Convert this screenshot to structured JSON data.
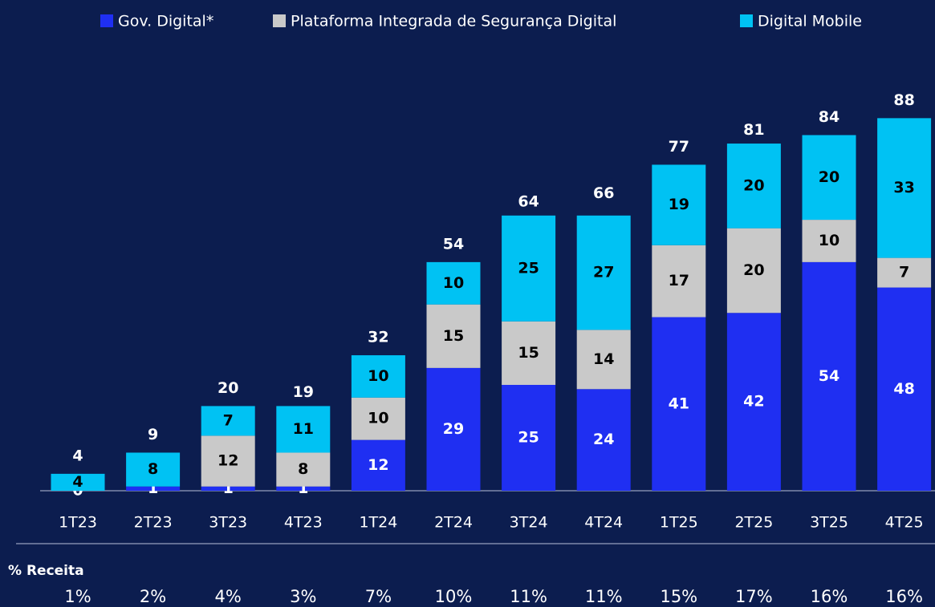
{
  "chart_data": {
    "type": "stacked_bar",
    "categories": [
      "1T23",
      "2T23",
      "3T23",
      "4T23",
      "1T24",
      "2T24",
      "3T24",
      "4T24",
      "1T25",
      "2T25",
      "3T25",
      "4T25"
    ],
    "series": [
      {
        "name": "Gov. Digital*",
        "color": "#1f2ff2",
        "values": [
          0,
          1,
          1,
          1,
          12,
          29,
          25,
          24,
          41,
          42,
          54,
          48
        ]
      },
      {
        "name": "Plataforma Integrada de Segurança Digital",
        "color": "#c9c9c9",
        "values": [
          null,
          null,
          12,
          8,
          10,
          15,
          15,
          14,
          17,
          20,
          10,
          7
        ]
      },
      {
        "name": "Digital Mobile",
        "color": "#00c2f3",
        "values": [
          4,
          8,
          7,
          11,
          10,
          10,
          25,
          27,
          19,
          20,
          20,
          33
        ]
      }
    ],
    "totals": [
      4,
      9,
      20,
      19,
      32,
      54,
      64,
      66,
      77,
      81,
      84,
      88
    ],
    "ylim": [
      0,
      100
    ],
    "legend": "top",
    "revenue_share": {
      "label": "% Receita",
      "values": [
        1,
        2,
        4,
        3,
        7,
        10,
        11,
        11,
        15,
        17,
        16,
        16
      ],
      "value_labels": [
        "1%",
        "2%",
        "4%",
        "3%",
        "7%",
        "10%",
        "11%",
        "11%",
        "15%",
        "17%",
        "16%",
        "16%"
      ]
    }
  }
}
